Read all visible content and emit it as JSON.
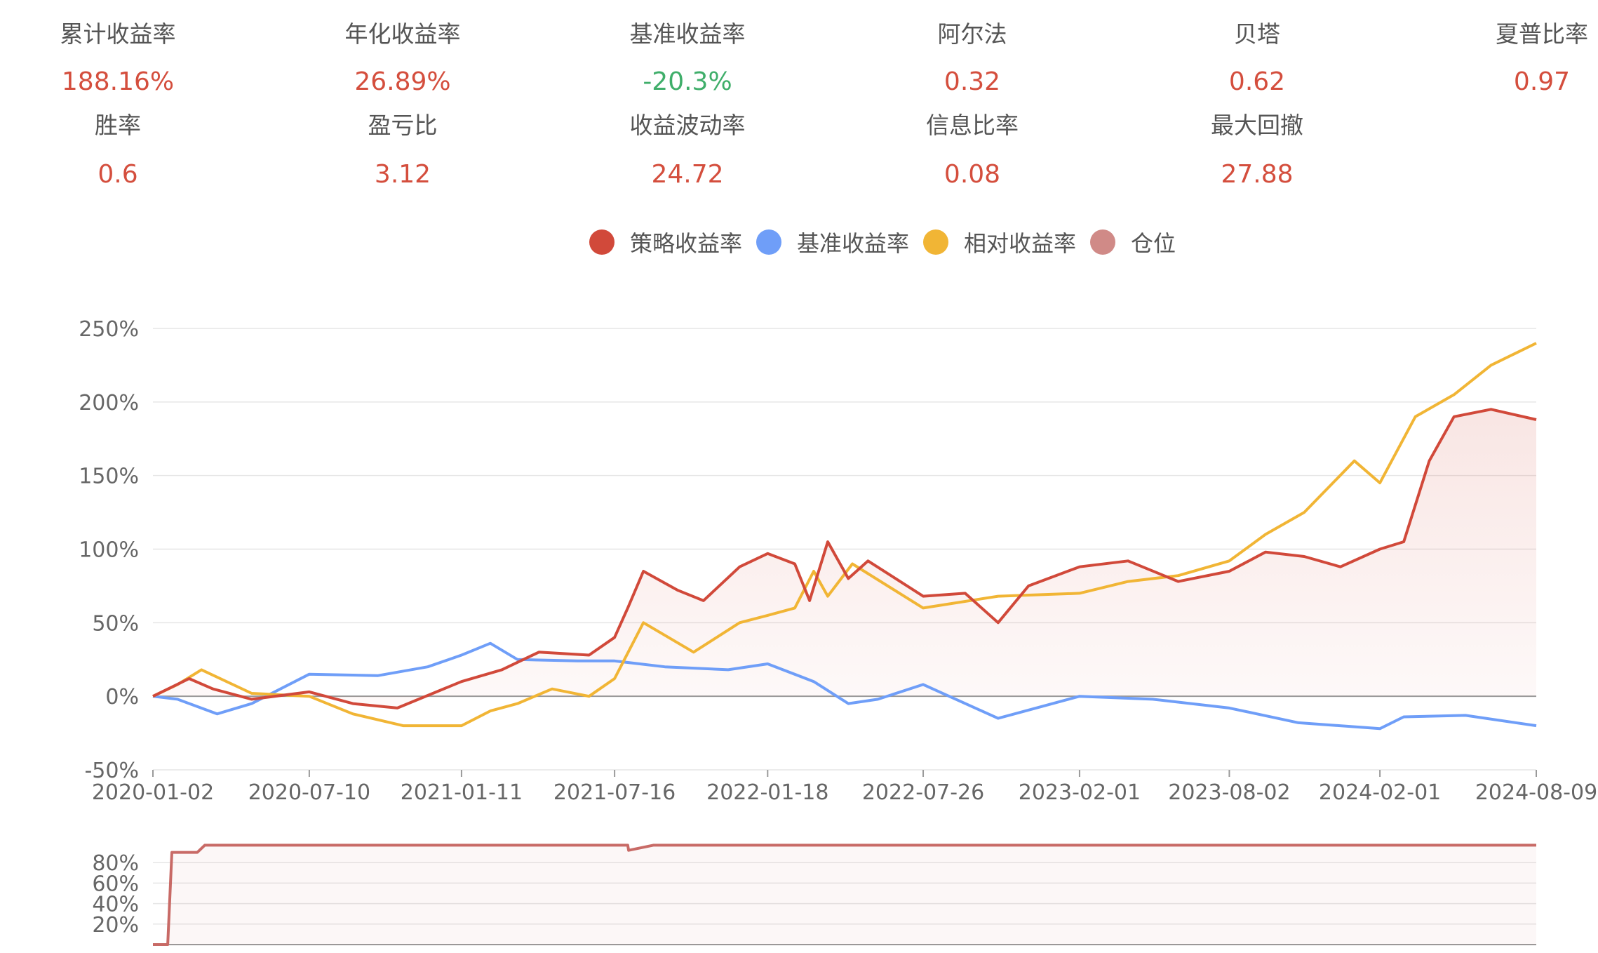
{
  "stats": {
    "row1": [
      {
        "label": "累计收益率",
        "value": "188.16%",
        "color": "#d44e3d"
      },
      {
        "label": "年化收益率",
        "value": "26.89%",
        "color": "#d44e3d"
      },
      {
        "label": "基准收益率",
        "value": "-20.3%",
        "color": "#3fae6a"
      },
      {
        "label": "阿尔法",
        "value": "0.32",
        "color": "#d44e3d"
      },
      {
        "label": "贝塔",
        "value": "0.62",
        "color": "#d44e3d"
      },
      {
        "label": "夏普比率",
        "value": "0.97",
        "color": "#d44e3d"
      }
    ],
    "row2": [
      {
        "label": "胜率",
        "value": "0.6",
        "color": "#d44e3d"
      },
      {
        "label": "盈亏比",
        "value": "3.12",
        "color": "#d44e3d"
      },
      {
        "label": "收益波动率",
        "value": "24.72",
        "color": "#d44e3d"
      },
      {
        "label": "信息比率",
        "value": "0.08",
        "color": "#d44e3d"
      },
      {
        "label": "最大回撤",
        "value": "27.88",
        "color": "#d44e3d"
      }
    ]
  },
  "legend": [
    {
      "name": "策略收益率",
      "color": "#d1493a"
    },
    {
      "name": "基准收益率",
      "color": "#6f9ef8"
    },
    {
      "name": "相对收益率",
      "color": "#f1b535"
    },
    {
      "name": "仓位",
      "color": "#d08a87"
    }
  ],
  "chart_data": [
    {
      "type": "line",
      "x_ticks": [
        "2020-01-02",
        "2020-07-10",
        "2021-01-11",
        "2021-07-16",
        "2022-01-18",
        "2022-07-26",
        "2023-02-01",
        "2023-08-02",
        "2024-02-01",
        "2024-08-09"
      ],
      "y_ticks": [
        "250%",
        "200%",
        "150%",
        "100%",
        "50%",
        "0%",
        "-50%"
      ],
      "ylim": [
        -50,
        250
      ],
      "grid": true,
      "legend_position": "top",
      "series": [
        {
          "name": "策略收益率",
          "color": "#d1493a",
          "area": true,
          "x": [
            "2020-01-02",
            "2020-02-15",
            "2020-03-15",
            "2020-05-01",
            "2020-07-10",
            "2020-09-01",
            "2020-10-25",
            "2021-01-11",
            "2021-03-01",
            "2021-04-15",
            "2021-06-15",
            "2021-07-16",
            "2021-08-01",
            "2021-08-20",
            "2021-10-01",
            "2021-11-01",
            "2021-12-15",
            "2022-01-18",
            "2022-02-20",
            "2022-03-10",
            "2022-04-01",
            "2022-04-26",
            "2022-05-20",
            "2022-07-26",
            "2022-09-15",
            "2022-10-25",
            "2022-12-01",
            "2023-02-01",
            "2023-04-01",
            "2023-06-01",
            "2023-08-02",
            "2023-09-15",
            "2023-11-01",
            "2023-12-15",
            "2024-02-01",
            "2024-03-01",
            "2024-04-01",
            "2024-05-01",
            "2024-06-15",
            "2024-08-09"
          ],
          "y": [
            0,
            12,
            5,
            -2,
            3,
            -5,
            -8,
            10,
            18,
            30,
            28,
            40,
            60,
            85,
            72,
            65,
            88,
            97,
            90,
            65,
            105,
            80,
            92,
            68,
            70,
            50,
            75,
            88,
            92,
            78,
            85,
            98,
            95,
            88,
            100,
            105,
            160,
            190,
            195,
            188
          ]
        },
        {
          "name": "基准收益率",
          "color": "#6f9ef8",
          "area": false,
          "x": [
            "2020-01-02",
            "2020-02-01",
            "2020-03-20",
            "2020-05-01",
            "2020-07-10",
            "2020-10-01",
            "2020-12-01",
            "2021-01-11",
            "2021-02-15",
            "2021-03-20",
            "2021-06-01",
            "2021-07-16",
            "2021-09-15",
            "2021-12-01",
            "2022-01-18",
            "2022-03-15",
            "2022-04-26",
            "2022-06-01",
            "2022-07-26",
            "2022-10-25",
            "2023-02-01",
            "2023-05-01",
            "2023-08-02",
            "2023-10-25",
            "2024-02-01",
            "2024-03-01",
            "2024-05-15",
            "2024-08-09"
          ],
          "y": [
            0,
            -2,
            -12,
            -5,
            15,
            14,
            20,
            28,
            36,
            25,
            24,
            24,
            20,
            18,
            22,
            10,
            -5,
            -2,
            8,
            -15,
            0,
            -2,
            -8,
            -18,
            -22,
            -14,
            -13,
            -20
          ]
        },
        {
          "name": "相对收益率",
          "color": "#f1b535",
          "area": false,
          "x": [
            "2020-01-02",
            "2020-02-01",
            "2020-03-01",
            "2020-05-01",
            "2020-07-10",
            "2020-09-01",
            "2020-11-01",
            "2021-01-11",
            "2021-02-15",
            "2021-03-20",
            "2021-05-01",
            "2021-06-15",
            "2021-07-16",
            "2021-08-20",
            "2021-10-20",
            "2021-12-15",
            "2022-01-18",
            "2022-02-20",
            "2022-03-15",
            "2022-04-01",
            "2022-05-01",
            "2022-07-26",
            "2022-10-25",
            "2023-02-01",
            "2023-04-01",
            "2023-06-01",
            "2023-08-02",
            "2023-09-15",
            "2023-11-01",
            "2024-01-01",
            "2024-02-01",
            "2024-03-15",
            "2024-05-01",
            "2024-06-15",
            "2024-08-09"
          ],
          "y": [
            0,
            8,
            18,
            2,
            0,
            -12,
            -20,
            -20,
            -10,
            -5,
            5,
            0,
            12,
            50,
            30,
            50,
            55,
            60,
            85,
            68,
            90,
            60,
            68,
            70,
            78,
            82,
            92,
            110,
            125,
            160,
            145,
            190,
            205,
            225,
            240
          ]
        }
      ]
    },
    {
      "type": "area",
      "name": "仓位",
      "y_ticks": [
        "80%",
        "60%",
        "40%",
        "20%"
      ],
      "ylim": [
        0,
        100
      ],
      "color": "#c86a66",
      "x": [
        "2020-01-02",
        "2020-01-20",
        "2020-01-25",
        "2020-02-25",
        "2020-03-05",
        "2021-08-01",
        "2021-08-02",
        "2021-09-01",
        "2024-08-09"
      ],
      "y": [
        0,
        0,
        90,
        90,
        97,
        97,
        92,
        97,
        97
      ]
    }
  ]
}
